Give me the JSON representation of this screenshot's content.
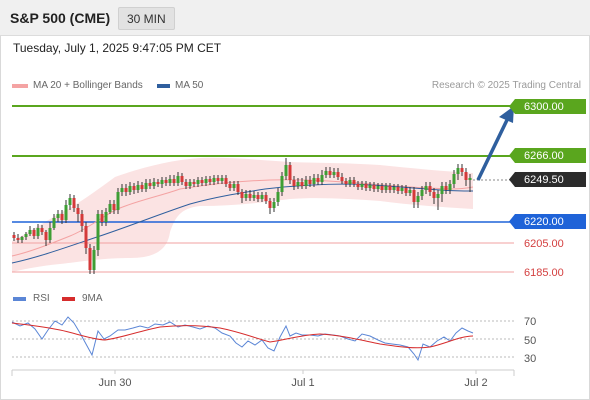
{
  "header": {
    "instrument": "S&P 500 (CME)",
    "interval_button": "30 MIN"
  },
  "timestamp": "Tuesday, July 1, 2025 9:47:05 PM CET",
  "legend": {
    "ma20": {
      "label": "MA 20 + Bollinger Bands",
      "color": "#f4a3a3"
    },
    "ma50": {
      "label": "MA 50",
      "color": "#2f5f9e"
    }
  },
  "attribution": "Research © 2025 Trading Central",
  "price_levels": [
    {
      "label": "6300.00",
      "value": 6300,
      "kind": "target",
      "color": "#5aa61e"
    },
    {
      "label": "6266.00",
      "value": 6266,
      "kind": "resistance",
      "color": "#5aa61e"
    },
    {
      "label": "6249.50",
      "value": 6249.5,
      "kind": "last",
      "color": "#2b2b2b"
    },
    {
      "label": "6220.00",
      "value": 6220,
      "kind": "pivot",
      "color": "#1f63d8"
    },
    {
      "label": "6205.00",
      "value": 6205,
      "kind": "support",
      "color": "#e06666"
    },
    {
      "label": "6185.00",
      "value": 6185,
      "kind": "support",
      "color": "#e06666"
    }
  ],
  "rsi_panel": {
    "rsi_label": "RSI",
    "ma_label": "9MA",
    "rsi_color": "#5b86d6",
    "ma_color": "#d62c2c",
    "levels": [
      "70",
      "50",
      "30"
    ]
  },
  "x_axis": {
    "ticks": [
      "Jun 30",
      "Jul 1",
      "Jul 2"
    ]
  },
  "colors": {
    "bull": "#3e9e34",
    "bear": "#d43a3a",
    "band_fill": "#fbe3e3",
    "arrow": "#2f5f9e"
  }
}
